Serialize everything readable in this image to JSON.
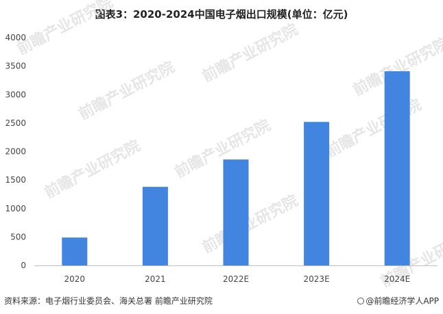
{
  "chart_data": {
    "type": "bar",
    "title": "图表3：2020-2024中国电子烟出口规模(单位：亿元)",
    "categories": [
      "2020",
      "2021",
      "2022E",
      "2023E",
      "2024E"
    ],
    "series": [
      {
        "values": [
          490,
          1380,
          1860,
          2520,
          3410
        ]
      }
    ],
    "ylim": [
      0,
      4000
    ],
    "yticks": [
      "0",
      "500",
      "1000",
      "1500",
      "2000",
      "2500",
      "3000",
      "3500",
      "4000"
    ],
    "xlabel": "",
    "ylabel": "",
    "grid": false,
    "legend": "none",
    "bar_color": "#4285E0"
  },
  "source": "资料来源：电子烟行业委员会、海关总署 前瞻产业研究院",
  "brand": "@前瞻经济学人APP",
  "watermark": "前瞻产业研究院"
}
